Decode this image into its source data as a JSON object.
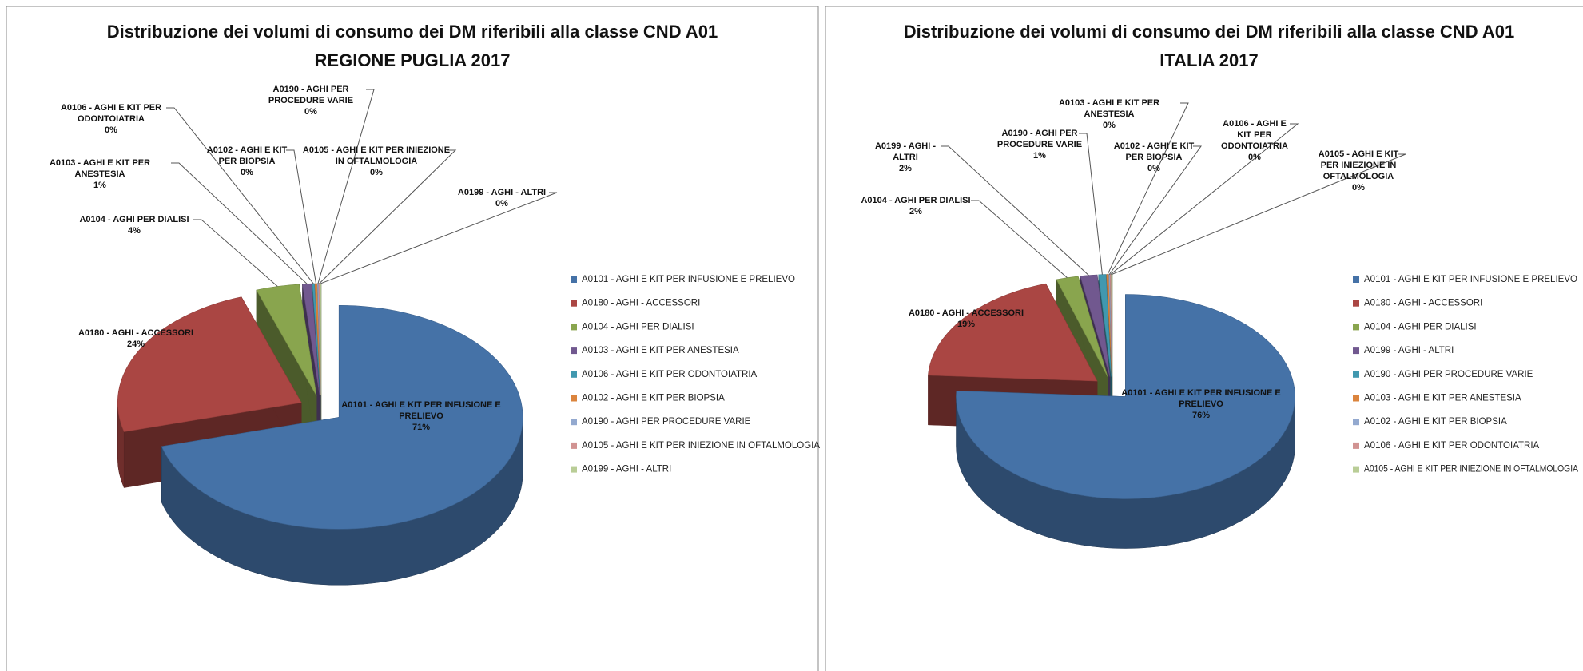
{
  "chart_data": [
    {
      "type": "pie",
      "title": "Distribuzione dei volumi di consumo dei DM riferibili alla classe CND A01",
      "subtitle": "REGIONE PUGLIA 2017",
      "categories": [
        "A0101 - AGHI E KIT PER INFUSIONE  E PRELIEVO",
        "A0180 - AGHI - ACCESSORI",
        "A0104 - AGHI PER DIALISI",
        "A0103 - AGHI E KIT PER ANESTESIA",
        "A0106 - AGHI E KIT PER ODONTOIATRIA",
        "A0102 - AGHI E KIT PER BIOPSIA",
        "A0190 - AGHI PER PROCEDURE  VARIE",
        "A0105 - AGHI E KIT PER INIEZIONE  IN OFTALMOLOGIA",
        "A0199 - AGHI - ALTRI"
      ],
      "values": [
        70.8,
        23.9,
        3.8,
        0.8,
        0.2,
        0.2,
        0.1,
        0.1,
        0.1
      ],
      "value_labels": [
        "71%",
        "24%",
        "4%",
        "1%",
        "0%",
        "0%",
        "0%",
        "0%",
        "0%"
      ],
      "colors": [
        "#4572a7",
        "#aa4643",
        "#89a54e",
        "#71588f",
        "#4198af",
        "#db843d",
        "#93a9cf",
        "#d19392",
        "#b9cd96"
      ],
      "legend": "right"
    },
    {
      "type": "pie",
      "title": "Distribuzione dei volumi di consumo dei DM riferibili alla classe CND A01",
      "subtitle": "ITALIA 2017",
      "categories": [
        "A0101 - AGHI E KIT PER INFUSIONE  E PRELIEVO",
        "A0180 - AGHI - ACCESSORI",
        "A0104 - AGHI PER DIALISI",
        "A0199 - AGHI - ALTRI",
        "A0190 - AGHI PER PROCEDURE  VARIE",
        "A0103 - AGHI E KIT PER ANESTESIA",
        "A0102 - AGHI E KIT PER BIOPSIA",
        "A0106 - AGHI E KIT PER ODONTOIATRIA",
        "A0105 - AGHI E KIT PER INIEZIONE  IN OFTALMOLOGIA"
      ],
      "values": [
        75.9,
        19.2,
        2.1,
        1.6,
        0.7,
        0.2,
        0.1,
        0.1,
        0.1
      ],
      "value_labels": [
        "76%",
        "19%",
        "2%",
        "2%",
        "1%",
        "0%",
        "0%",
        "0%",
        "0%"
      ],
      "colors": [
        "#4572a7",
        "#aa4643",
        "#89a54e",
        "#71588f",
        "#4198af",
        "#db843d",
        "#93a9cf",
        "#d19392",
        "#b9cd96"
      ],
      "legend": "right"
    }
  ]
}
